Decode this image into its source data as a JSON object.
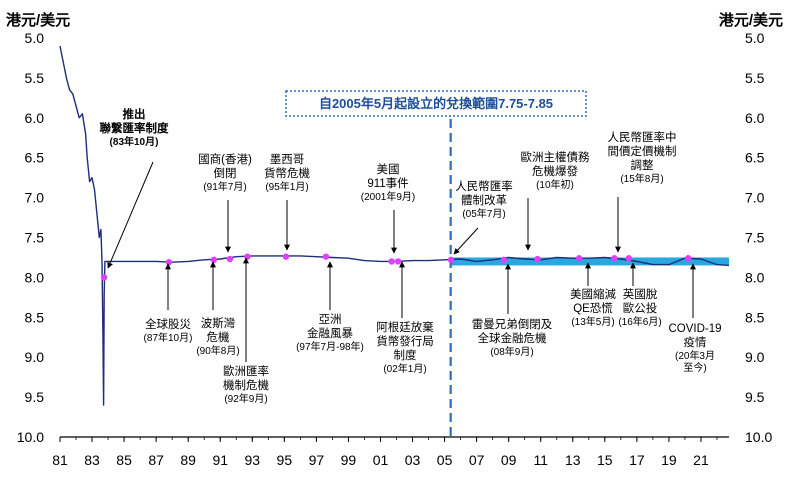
{
  "chart_data": {
    "type": "line",
    "title": "",
    "ylabel_left": "港元/美元",
    "ylabel_right": "港元/美元",
    "y_inverted": true,
    "ylim": [
      5.0,
      10.0
    ],
    "yticks": [
      "5.0",
      "5.5",
      "6.0",
      "6.5",
      "7.0",
      "7.5",
      "8.0",
      "8.5",
      "9.0",
      "9.5",
      "10.0"
    ],
    "xlim": [
      1981,
      2022.75
    ],
    "xticks": [
      "81",
      "83",
      "85",
      "87",
      "89",
      "91",
      "93",
      "95",
      "97",
      "99",
      "01",
      "03",
      "05",
      "07",
      "09",
      "11",
      "13",
      "15",
      "17",
      "19",
      "21"
    ],
    "grid": false,
    "line_color": "#1f2d7a",
    "marker_color": "#e040fb",
    "band_color": "#29a8e0",
    "divider_color": "#2f6db5",
    "convertibility_zone": {
      "start": 2005.38,
      "range": [
        7.75,
        7.85
      ],
      "label": "自2005年5月起設立的兌換範圍7.75-7.85"
    },
    "series": [
      {
        "values": [
          [
            1981.0,
            5.1
          ],
          [
            1981.2,
            5.3
          ],
          [
            1981.4,
            5.5
          ],
          [
            1981.6,
            5.65
          ],
          [
            1981.8,
            5.7
          ],
          [
            1982.0,
            5.85
          ],
          [
            1982.2,
            6.0
          ],
          [
            1982.4,
            5.95
          ],
          [
            1982.6,
            6.2
          ],
          [
            1982.7,
            6.5
          ],
          [
            1982.85,
            6.8
          ],
          [
            1983.0,
            6.75
          ],
          [
            1983.15,
            6.9
          ],
          [
            1983.3,
            7.2
          ],
          [
            1983.45,
            7.5
          ],
          [
            1983.55,
            7.4
          ],
          [
            1983.62,
            7.8
          ],
          [
            1983.68,
            8.7
          ],
          [
            1983.72,
            9.6
          ],
          [
            1983.76,
            8.2
          ],
          [
            1983.8,
            7.8
          ],
          [
            1984,
            7.8
          ],
          [
            1985,
            7.8
          ],
          [
            1986,
            7.8
          ],
          [
            1987,
            7.8
          ],
          [
            1988,
            7.81
          ],
          [
            1989,
            7.8
          ],
          [
            1990,
            7.78
          ],
          [
            1991,
            7.77
          ],
          [
            1992,
            7.74
          ],
          [
            1993,
            7.73
          ],
          [
            1994,
            7.73
          ],
          [
            1995,
            7.73
          ],
          [
            1996,
            7.73
          ],
          [
            1997,
            7.74
          ],
          [
            1998,
            7.75
          ],
          [
            1999,
            7.76
          ],
          [
            2000,
            7.79
          ],
          [
            2001,
            7.8
          ],
          [
            2002,
            7.8
          ],
          [
            2003,
            7.79
          ],
          [
            2004,
            7.79
          ],
          [
            2005,
            7.78
          ],
          [
            2006,
            7.77
          ],
          [
            2007,
            7.8
          ],
          [
            2008,
            7.78
          ],
          [
            2009,
            7.75
          ],
          [
            2010,
            7.77
          ],
          [
            2011,
            7.78
          ],
          [
            2012,
            7.75
          ],
          [
            2013,
            7.76
          ],
          [
            2014,
            7.76
          ],
          [
            2015,
            7.75
          ],
          [
            2016,
            7.77
          ],
          [
            2017,
            7.8
          ],
          [
            2018,
            7.84
          ],
          [
            2019,
            7.84
          ],
          [
            2020,
            7.76
          ],
          [
            2021,
            7.77
          ],
          [
            2022,
            7.84
          ],
          [
            2022.75,
            7.85
          ]
        ]
      }
    ],
    "markers": [
      [
        1983.75,
        8.0
      ],
      [
        1987.8,
        7.81
      ],
      [
        1990.6,
        7.78
      ],
      [
        1991.6,
        7.77
      ],
      [
        1992.7,
        7.74
      ],
      [
        1995.1,
        7.74
      ],
      [
        1997.6,
        7.74
      ],
      [
        2001.7,
        7.8
      ],
      [
        2002.1,
        7.8
      ],
      [
        2005.4,
        7.78
      ],
      [
        2008.7,
        7.78
      ],
      [
        2010.8,
        7.77
      ],
      [
        2013.4,
        7.76
      ],
      [
        2015.6,
        7.76
      ],
      [
        2016.5,
        7.76
      ],
      [
        2020.2,
        7.76
      ]
    ],
    "annotations": [
      {
        "text": [
          "推出",
          "聯繫匯率制度"
        ],
        "date": "(83年10月)",
        "bold": true,
        "x": 1983.75,
        "y": 8.0
      },
      {
        "text": [
          "全球股災"
        ],
        "date": "(87年10月)",
        "x": 1987.8,
        "y": 7.81
      },
      {
        "text": [
          "波斯灣",
          "危機"
        ],
        "date": "(90年8月)",
        "x": 1990.6,
        "y": 7.78
      },
      {
        "text": [
          "國商(香港)",
          "倒閉"
        ],
        "date": "(91年7月)",
        "x": 1991.6,
        "y": 7.77
      },
      {
        "text": [
          "歐洲匯率",
          "機制危機"
        ],
        "date": "(92年9月)",
        "x": 1992.7,
        "y": 7.74
      },
      {
        "text": [
          "墨西哥",
          "貨幣危機"
        ],
        "date": "(95年1月)",
        "x": 1995.1,
        "y": 7.74
      },
      {
        "text": [
          "亞洲",
          "金融風暴"
        ],
        "date": "(97年7月-98年)",
        "x": 1997.6,
        "y": 7.74
      },
      {
        "text": [
          "美國",
          "911事件"
        ],
        "date": "(2001年9月)",
        "x": 2001.7,
        "y": 7.8
      },
      {
        "text": [
          "阿根廷放棄",
          "貨幣發行局",
          "制度"
        ],
        "date": "(02年1月)",
        "x": 2002.1,
        "y": 7.8
      },
      {
        "text": [
          "人民幣匯率",
          "體制改革"
        ],
        "date": "(05年7月)",
        "x": 2005.4,
        "y": 7.78
      },
      {
        "text": [
          "雷曼兄弟倒閉及",
          "全球金融危機"
        ],
        "date": "(08年9月)",
        "x": 2008.7,
        "y": 7.78
      },
      {
        "text": [
          "歐洲主權債務",
          "危機爆發"
        ],
        "date": "(10年初)",
        "x": 2010.8,
        "y": 7.77
      },
      {
        "text": [
          "美國縮減",
          "QE恐慌"
        ],
        "date": "(13年5月)",
        "x": 2013.4,
        "y": 7.76
      },
      {
        "text": [
          "人民幣匯率中",
          "間價定價機制",
          "調整"
        ],
        "date": "(15年8月)",
        "x": 2015.6,
        "y": 7.76
      },
      {
        "text": [
          "英國脫",
          "歐公投"
        ],
        "date": "(16年6月)",
        "x": 2016.5,
        "y": 7.76
      },
      {
        "text": [
          "COVID-19",
          "疫情"
        ],
        "date": "(20年3月",
        "date2": "至今)",
        "x": 2020.2,
        "y": 7.76
      }
    ]
  }
}
